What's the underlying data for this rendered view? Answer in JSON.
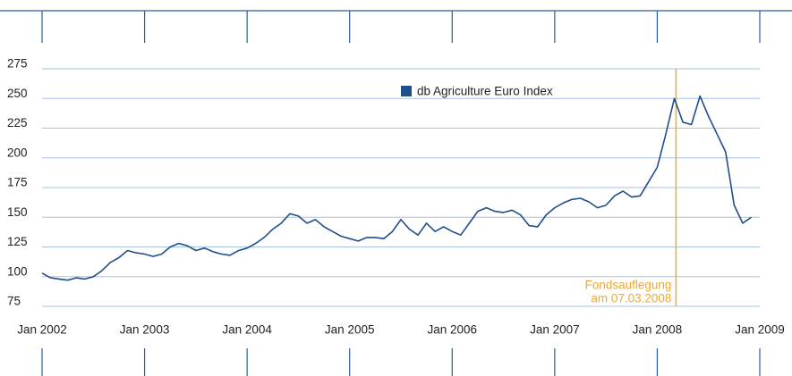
{
  "chart_data": {
    "type": "line",
    "series": [
      {
        "name": "db Agriculture Euro Index",
        "color": "#1f4e8c",
        "values": [
          103,
          99,
          98,
          97,
          99,
          98,
          100,
          105,
          112,
          116,
          122,
          120,
          119,
          117,
          119,
          125,
          128,
          126,
          122,
          124,
          121,
          119,
          118,
          122,
          124,
          128,
          133,
          140,
          145,
          153,
          151,
          145,
          148,
          142,
          138,
          134,
          132,
          130,
          133,
          133,
          132,
          138,
          148,
          140,
          135,
          145,
          138,
          142,
          138,
          135,
          145,
          155,
          158,
          155,
          154,
          156,
          152,
          143,
          142,
          152,
          158,
          162,
          165,
          166,
          163,
          158,
          160,
          168,
          172,
          167,
          168,
          180,
          192,
          220,
          250,
          230,
          228,
          252,
          235,
          220,
          205,
          160,
          145,
          150
        ]
      }
    ],
    "x": [
      "2002-01",
      "2002-02",
      "2002-03",
      "2002-04",
      "2002-05",
      "2002-06",
      "2002-07",
      "2002-08",
      "2002-09",
      "2002-10",
      "2002-11",
      "2002-12",
      "2003-01",
      "2003-02",
      "2003-03",
      "2003-04",
      "2003-05",
      "2003-06",
      "2003-07",
      "2003-08",
      "2003-09",
      "2003-10",
      "2003-11",
      "2003-12",
      "2004-01",
      "2004-02",
      "2004-03",
      "2004-04",
      "2004-05",
      "2004-06",
      "2004-07",
      "2004-08",
      "2004-09",
      "2004-10",
      "2004-11",
      "2004-12",
      "2005-01",
      "2005-02",
      "2005-03",
      "2005-04",
      "2005-05",
      "2005-06",
      "2005-07",
      "2005-08",
      "2005-09",
      "2005-10",
      "2005-11",
      "2005-12",
      "2006-01",
      "2006-02",
      "2006-03",
      "2006-04",
      "2006-05",
      "2006-06",
      "2006-07",
      "2006-08",
      "2006-09",
      "2006-10",
      "2006-11",
      "2006-12",
      "2007-01",
      "2007-02",
      "2007-03",
      "2007-04",
      "2007-05",
      "2007-06",
      "2007-07",
      "2007-08",
      "2007-09",
      "2007-10",
      "2007-11",
      "2007-12",
      "2008-01",
      "2008-02",
      "2008-03",
      "2008-04",
      "2008-05",
      "2008-06",
      "2008-07",
      "2008-08",
      "2008-09",
      "2008-10",
      "2008-11",
      "2008-12"
    ],
    "xlim": [
      "2002-01",
      "2009-01"
    ],
    "xticks": [
      {
        "value": "2002-01",
        "label": "Jan 2002"
      },
      {
        "value": "2003-01",
        "label": "Jan 2003"
      },
      {
        "value": "2004-01",
        "label": "Jan 2004"
      },
      {
        "value": "2005-01",
        "label": "Jan 2005"
      },
      {
        "value": "2006-01",
        "label": "Jan 2006"
      },
      {
        "value": "2007-01",
        "label": "Jan 2007"
      },
      {
        "value": "2008-01",
        "label": "Jan 2008"
      },
      {
        "value": "2009-01",
        "label": "Jan 2009"
      }
    ],
    "ylim": [
      75,
      275
    ],
    "yticks": [
      75,
      100,
      125,
      150,
      175,
      200,
      225,
      250,
      275
    ],
    "grid": true,
    "annotation": {
      "x": "2008-03-07",
      "color": "#f0a830",
      "text": [
        "Fondsauflegung",
        "am 07.03.2008"
      ]
    }
  }
}
